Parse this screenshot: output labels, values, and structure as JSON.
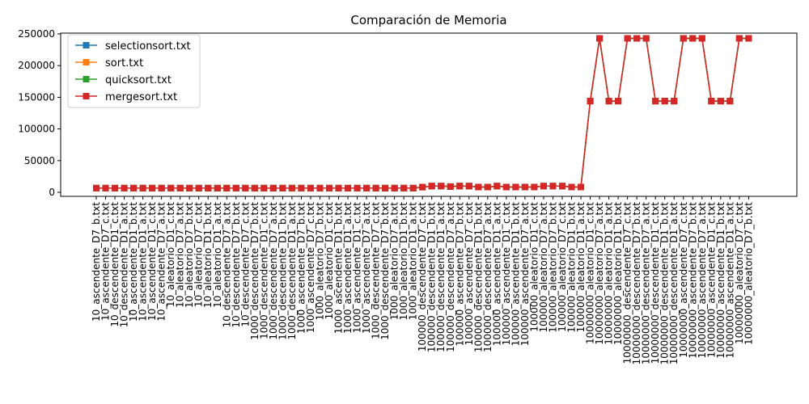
{
  "chart_data": {
    "type": "line",
    "title": "Comparación de Memoria",
    "xlabel": "",
    "ylabel": "",
    "ylim": [
      0,
      250000
    ],
    "yticks": [
      0,
      50000,
      100000,
      150000,
      200000,
      250000
    ],
    "legend_position": "top-left",
    "grid": false,
    "categories": [
      "10_ascendente_D7_b.txt",
      "10_ascendente_D7_c.txt",
      "10_descendente_D1_c.txt",
      "10_descendente_D1_a.txt",
      "10_ascendente_D1_b.txt",
      "10_ascendente_D1_a.txt",
      "10_ascendente_D1_c.txt",
      "10_ascendente_D7_a.txt",
      "10_aleatorio_D1_c.txt",
      "10_aleatorio_D7_a.txt",
      "10_aleatorio_D7_b.txt",
      "10_aleatorio_D7_c.txt",
      "10_aleatorio_D1_b.txt",
      "10_aleatorio_D1_a.txt",
      "10_descendente_D7_a.txt",
      "10_descendente_D7_b.txt",
      "10_descendente_D7_c.txt",
      "1000_descendente_D7_b.txt",
      "1000_descendente_D1_c.txt",
      "1000_descendente_D7_a.txt",
      "1000_descendente_D1_b.txt",
      "1000_descendente_D1_a.txt",
      "1000_ascendente_D7_b.txt",
      "1000_ascendente_D7_c.txt",
      "1000_aleatorio_D7_b.txt",
      "1000_aleatorio_D1_c.txt",
      "1000_ascendente_D1_b.txt",
      "1000_ascendente_D1_a.txt",
      "1000_ascendente_D1_c.txt",
      "1000_ascendente_D7_a.txt",
      "1000_descendente_D7_c.txt",
      "1000_descendente_D7_b.txt",
      "1000_aleatorio_D7_a.txt",
      "1000_aleatorio_D1_b.txt",
      "1000_aleatorio_D1_a.txt",
      "100000_descendente_D7_c.txt",
      "100000_descendente_D1_b.txt",
      "100000_descendente_D1_a.txt",
      "100000_descendente_D7_a.txt",
      "100000_ascendente_D7_b.txt",
      "100000_ascendente_D7_c.txt",
      "100000_descendente_D1_b.txt",
      "100000_descendente_D7_a.txt",
      "100000_ascendente_D1_a.txt",
      "100000_ascendente_D1_c.txt",
      "100000_ascendente_D1_b.txt",
      "100000_ascendente_D7_a.txt",
      "100000_aleatorio_D1_c.txt",
      "100000_aleatorio_D7_a.txt",
      "100000_aleatorio_D7_b.txt",
      "100000_aleatorio_D7_c.txt",
      "100000_aleatorio_D1_b.txt",
      "100000_aleatorio_D1_a.txt",
      "10000000_aleatorio_D1_c.txt",
      "10000000_aleatorio_D7_a.txt",
      "10000000_aleatorio_D1_a.txt",
      "10000000_aleatorio_D1_b.txt",
      "10000000_descendente_D7_c.txt",
      "10000000_descendente_D7_b.txt",
      "10000000_descendente_D7_a.txt",
      "10000000_descendente_D1_c.txt",
      "10000000_descendente_D1_b.txt",
      "10000000_descendente_D1_a.txt",
      "10000000_ascendente_D7_c.txt",
      "10000000_ascendente_D7_b.txt",
      "10000000_ascendente_D7_a.txt",
      "10000000_ascendente_D1_c.txt",
      "10000000_ascendente_D1_b.txt",
      "10000000_ascendente_D1_a.txt",
      "10000000_aleatorio_D7_c.txt",
      "10000000_aleatorio_D7_b.txt"
    ],
    "series": [
      {
        "name": "selectionsort.txt",
        "color": "#1f77b4",
        "values": [
          6600,
          6600,
          6600,
          6600,
          6600,
          6600,
          6600,
          6600,
          6600,
          6600,
          6600,
          6600,
          6600,
          6600,
          6600,
          6600,
          6600,
          6600,
          6600,
          6600,
          6600,
          6600,
          6600,
          6600,
          6600,
          6600,
          6600,
          6600,
          6600,
          6600,
          6600,
          6600,
          6600,
          6600,
          6600,
          8200,
          9800,
          9800,
          9000,
          9800,
          9800,
          8300,
          8300,
          9800,
          8300,
          8300,
          8300,
          8300,
          9800,
          9800,
          9800,
          8300,
          8300,
          144000,
          243000,
          144000,
          144000,
          243000,
          243000,
          243000,
          144000,
          144000,
          144000,
          243000,
          243000,
          243000,
          144000,
          144000,
          144000,
          243000,
          243000
        ]
      },
      {
        "name": "sort.txt",
        "color": "#ff7f0e",
        "values": [
          6600,
          6600,
          6600,
          6600,
          6600,
          6600,
          6600,
          6600,
          6600,
          6600,
          6600,
          6600,
          6600,
          6600,
          6600,
          6600,
          6600,
          6600,
          6600,
          6600,
          6600,
          6600,
          6600,
          6600,
          6600,
          6600,
          6600,
          6600,
          6600,
          6600,
          6600,
          6600,
          6600,
          6600,
          6600,
          8200,
          9800,
          9800,
          9000,
          9800,
          9800,
          8300,
          8300,
          9800,
          8300,
          8300,
          8300,
          8300,
          9800,
          9800,
          9800,
          8300,
          8300,
          144000,
          243000,
          144000,
          144000,
          243000,
          243000,
          243000,
          144000,
          144000,
          144000,
          243000,
          243000,
          243000,
          144000,
          144000,
          144000,
          243000,
          243000
        ]
      },
      {
        "name": "quicksort.txt",
        "color": "#2ca02c",
        "values": [
          6600,
          6600,
          6600,
          6600,
          6600,
          6600,
          6600,
          6600,
          6600,
          6600,
          6600,
          6600,
          6600,
          6600,
          6600,
          6600,
          6600,
          6600,
          6600,
          6600,
          6600,
          6600,
          6600,
          6600,
          6600,
          6600,
          6600,
          6600,
          6600,
          6600,
          6600,
          6600,
          6600,
          6600,
          6600,
          8200,
          9800,
          9800,
          9000,
          9800,
          9800,
          8300,
          8300,
          9800,
          8300,
          8300,
          8300,
          8300,
          9800,
          9800,
          9800,
          8300,
          8300,
          144000,
          243000,
          144000,
          144000,
          243000,
          243000,
          243000,
          144000,
          144000,
          144000,
          243000,
          243000,
          243000,
          144000,
          144000,
          144000,
          243000,
          243000
        ]
      },
      {
        "name": "mergesort.txt",
        "color": "#d62728",
        "values": [
          6600,
          6600,
          6600,
          6600,
          6600,
          6600,
          6600,
          6600,
          6600,
          6600,
          6600,
          6600,
          6600,
          6600,
          6600,
          6600,
          6600,
          6600,
          6600,
          6600,
          6600,
          6600,
          6600,
          6600,
          6600,
          6600,
          6600,
          6600,
          6600,
          6600,
          6600,
          6600,
          6600,
          6600,
          6600,
          8200,
          9800,
          9800,
          9000,
          9800,
          9800,
          8300,
          8300,
          9800,
          8300,
          8300,
          8300,
          8300,
          9800,
          9800,
          9800,
          8300,
          8300,
          144000,
          243000,
          144000,
          144000,
          243000,
          243000,
          243000,
          144000,
          144000,
          144000,
          243000,
          243000,
          243000,
          144000,
          144000,
          144000,
          243000,
          243000
        ]
      }
    ]
  }
}
